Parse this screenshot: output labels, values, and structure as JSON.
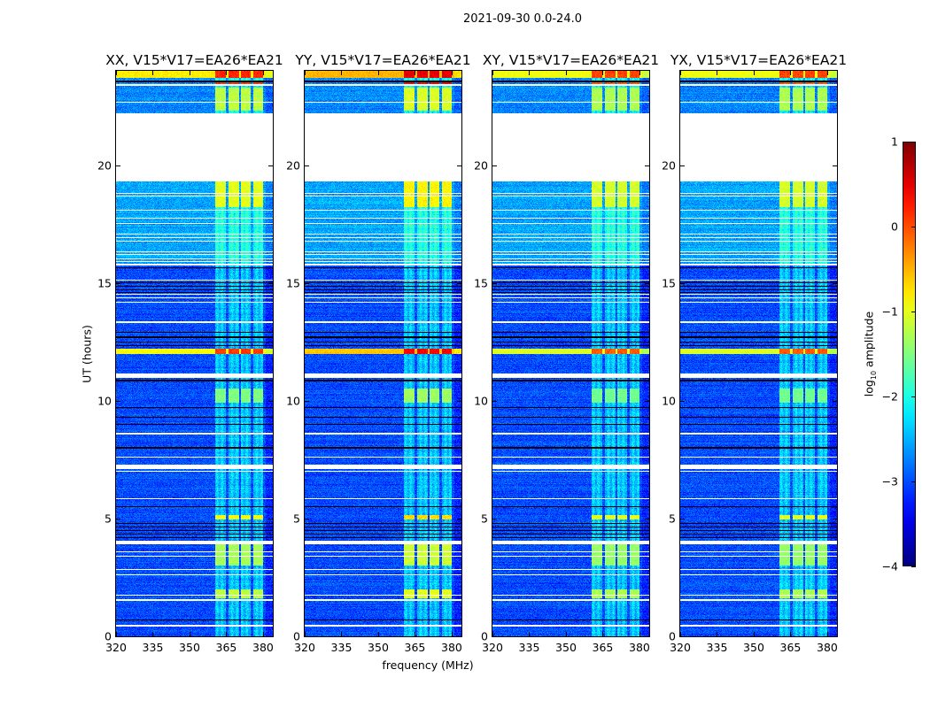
{
  "suptitle": "2021-09-30 0.0-24.0",
  "chart_data": {
    "type": "heatmap",
    "title": "2021-09-30 0.0-24.0",
    "xlabel": "frequency (MHz)",
    "ylabel": "UT (hours)",
    "xlim": [
      320,
      384
    ],
    "ylim": [
      0,
      24
    ],
    "xticks": [
      320,
      335,
      350,
      365,
      380
    ],
    "yticks": [
      0,
      5,
      10,
      15,
      20
    ],
    "colorbar": {
      "label_prefix": "log",
      "label_sub": "10",
      "label_suffix": " amplitude",
      "range": [
        -4,
        1
      ],
      "ticks": [
        1,
        0,
        -1,
        -2,
        -3,
        -4
      ],
      "tick_labels": [
        "1",
        "0",
        "−1",
        "−2",
        "−3",
        "−4"
      ],
      "colormap": "jet"
    },
    "panels": [
      {
        "title": "XX, V15*V17=EA26*EA21",
        "event_scale": 1.0
      },
      {
        "title": "YY, V15*V17=EA26*EA21",
        "event_scale": 1.1
      },
      {
        "title": "XY, V15*V17=EA26*EA21",
        "event_scale": 0.95
      },
      {
        "title": "YX, V15*V17=EA26*EA21",
        "event_scale": 0.95
      }
    ],
    "background_log_amplitude": -3.0,
    "elevated_background": [
      {
        "t": [
          15.8,
          19.3
        ],
        "delta": 0.45
      },
      {
        "t": [
          22.2,
          24
        ],
        "delta": 0.3
      }
    ],
    "bright_channels_mhz": [
      [
        360.4,
        364.8
      ],
      [
        365.8,
        370.2
      ],
      [
        370.9,
        374.9
      ],
      [
        376.0,
        380.0
      ]
    ],
    "channel_base_boost": 0.6,
    "events": [
      {
        "t": [
          23.7,
          24.0
        ],
        "level": 0.2,
        "across": true
      },
      {
        "t": [
          23.35,
          23.5
        ],
        "level": 0.1,
        "across": false
      },
      {
        "t": [
          22.3,
          23.3
        ],
        "level": -1.2,
        "across": false
      },
      {
        "t": [
          18.2,
          19.3
        ],
        "level": -1.0,
        "across": false
      },
      {
        "t": [
          12.0,
          12.2
        ],
        "level": 0.1,
        "across": true
      },
      {
        "t": [
          9.9,
          10.5
        ],
        "level": -1.5,
        "across": false
      },
      {
        "t": [
          4.95,
          5.15
        ],
        "level": -0.9,
        "across": false
      },
      {
        "t": [
          3.0,
          3.9
        ],
        "level": -1.3,
        "across": false
      },
      {
        "t": [
          1.6,
          2.0
        ],
        "level": -1.2,
        "across": false
      }
    ],
    "blank_intervals_hours": [
      [
        19.3,
        22.2
      ],
      [
        23.38,
        23.42
      ],
      [
        22.63,
        22.67
      ],
      [
        18.77,
        18.8
      ],
      [
        18.67,
        18.7
      ],
      [
        18.58,
        18.61
      ],
      [
        18.06,
        18.09
      ],
      [
        17.9,
        17.93
      ],
      [
        17.74,
        17.77
      ],
      [
        17.5,
        17.53
      ],
      [
        17.3,
        17.33
      ],
      [
        17.05,
        17.08
      ],
      [
        16.9,
        16.93
      ],
      [
        16.75,
        16.78
      ],
      [
        16.3,
        16.33
      ],
      [
        16.2,
        16.23
      ],
      [
        16.0,
        16.03
      ],
      [
        15.9,
        15.93
      ],
      [
        15.72,
        15.8
      ],
      [
        15.1,
        15.13
      ],
      [
        14.5,
        14.53
      ],
      [
        14.35,
        14.38
      ],
      [
        14.15,
        14.18
      ],
      [
        13.92,
        13.95
      ],
      [
        13.31,
        13.36
      ],
      [
        10.97,
        11.15
      ],
      [
        8.58,
        8.62
      ],
      [
        7.58,
        7.62
      ],
      [
        7.1,
        7.3
      ],
      [
        6.98,
        7.02
      ],
      [
        5.83,
        5.87
      ],
      [
        3.9,
        4.05
      ],
      [
        3.58,
        3.62
      ],
      [
        3.38,
        3.42
      ],
      [
        2.83,
        2.87
      ],
      [
        2.58,
        2.62
      ],
      [
        1.72,
        1.76
      ],
      [
        1.52,
        1.56
      ],
      [
        0.43,
        0.47
      ]
    ],
    "flagged_zero_lines_hours": [
      23.55,
      15.65,
      15.0,
      14.85,
      14.7,
      14.58,
      12.9,
      12.7,
      12.5,
      12.35,
      10.85,
      9.7,
      9.3,
      9.0,
      8.0,
      5.5,
      4.8,
      4.65,
      4.5,
      4.35,
      4.2,
      0.7
    ]
  }
}
